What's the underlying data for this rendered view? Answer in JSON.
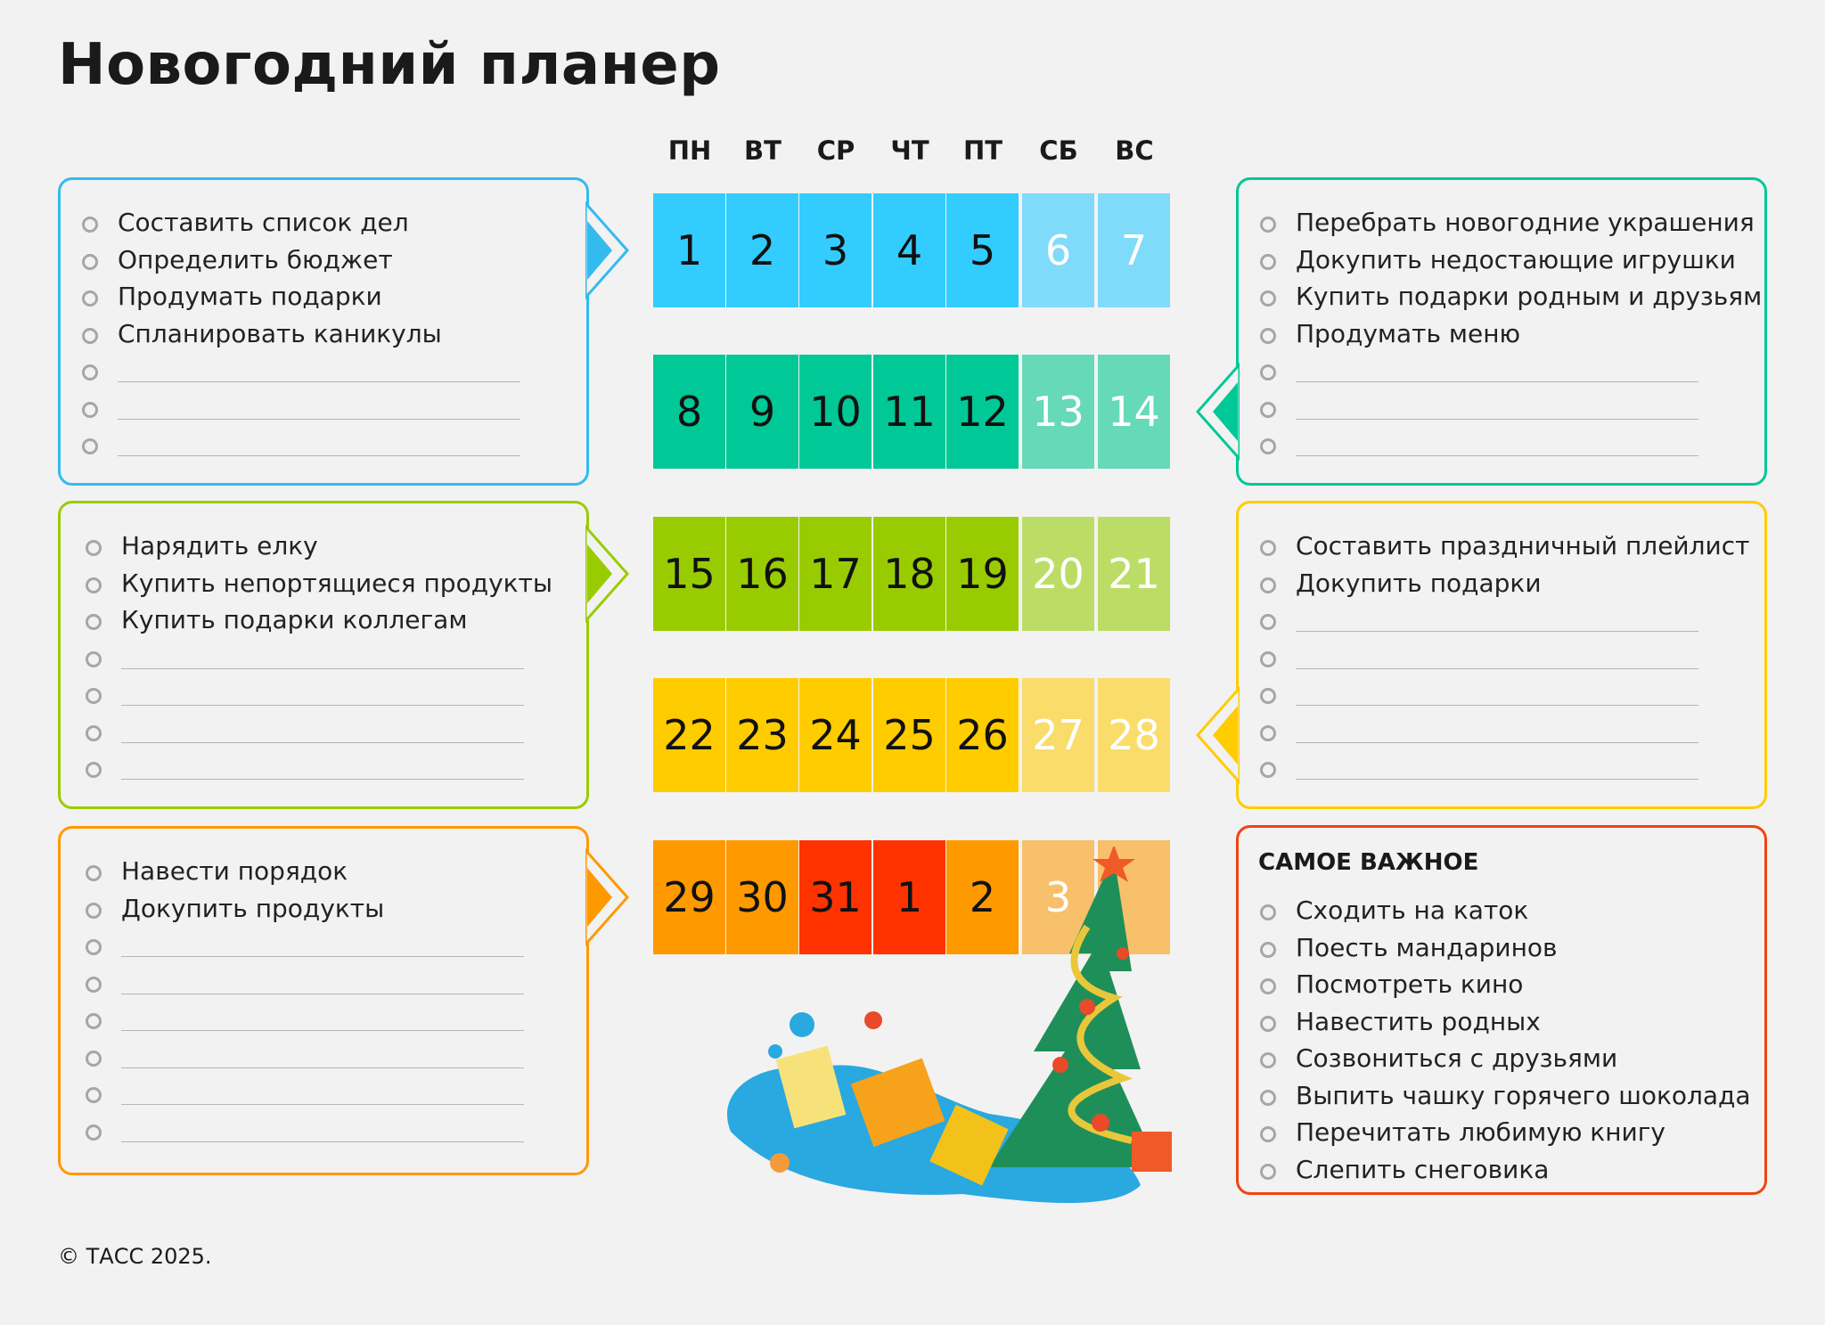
{
  "title": "Новогодний планер",
  "weekdays": [
    "ПН",
    "ВТ",
    "СР",
    "ЧТ",
    "ПТ",
    "СБ",
    "ВС"
  ],
  "calendar": {
    "weeks": [
      {
        "days": [
          "1",
          "2",
          "3",
          "4",
          "5",
          "6",
          "7"
        ],
        "colors": [
          "#33ccff",
          "#33ccff",
          "#33ccff",
          "#33ccff",
          "#33ccff",
          "#80dafa",
          "#80dafa"
        ]
      },
      {
        "days": [
          "8",
          "9",
          "10",
          "11",
          "12",
          "13",
          "14"
        ],
        "colors": [
          "#00c896",
          "#00c896",
          "#00c896",
          "#00c896",
          "#00c896",
          "#66d9b8",
          "#66d9b8"
        ]
      },
      {
        "days": [
          "15",
          "16",
          "17",
          "18",
          "19",
          "20",
          "21"
        ],
        "colors": [
          "#99cc00",
          "#99cc00",
          "#99cc00",
          "#99cc00",
          "#99cc00",
          "#bbdd66",
          "#bbdd66"
        ]
      },
      {
        "days": [
          "22",
          "23",
          "24",
          "25",
          "26",
          "27",
          "28"
        ],
        "colors": [
          "#ffcc00",
          "#ffcc00",
          "#ffcc00",
          "#ffcc00",
          "#ffcc00",
          "#f9dc6a",
          "#f9dc6a"
        ]
      },
      {
        "days": [
          "29",
          "30",
          "31",
          "1",
          "2",
          "3",
          ""
        ],
        "colors": [
          "#ff9900",
          "#ff9900",
          "#ff3300",
          "#ff3300",
          "#ff9900",
          "#f8c06a",
          "#f8c06a"
        ]
      }
    ],
    "weekend_text_color": "#ffffff"
  },
  "boxes": [
    {
      "color": "#33bbee",
      "side": "left",
      "week": 0,
      "items": [
        "Составить список дел",
        "Определить бюджет",
        "Продумать подарки",
        "Спланировать каникулы",
        "",
        "",
        ""
      ]
    },
    {
      "color": "#99cc00",
      "side": "left",
      "week": 2,
      "items": [
        "Нарядить елку",
        "Купить непортящиеся продукты",
        "Купить подарки коллегам",
        "",
        "",
        "",
        ""
      ]
    },
    {
      "color": "#ff9900",
      "side": "left",
      "week": 4,
      "items": [
        "Навести порядок",
        "Докупить продукты",
        "",
        "",
        "",
        "",
        "",
        ""
      ]
    },
    {
      "color": "#00c896",
      "side": "right",
      "week": 1,
      "items": [
        "Перебрать новогодние украшения",
        "Докупить недостающие игрушки",
        "Купить подарки родным и друзьям",
        "Продумать меню",
        "",
        "",
        ""
      ]
    },
    {
      "color": "#ffcc00",
      "side": "right",
      "week": 3,
      "items": [
        "Составить праздничный плейлист",
        "Докупить подарки",
        "",
        "",
        "",
        "",
        ""
      ]
    },
    {
      "color": "#ee4411",
      "side": "right",
      "week": null,
      "title": "САМОЕ ВАЖНОЕ",
      "items": [
        "Сходить на каток",
        "Поесть мандаринов",
        "Посмотреть кино",
        "Навестить родных",
        "Созвониться с друзьями",
        "Выпить чашку горячего шоколада",
        "Перечитать любимую книгу",
        "Слепить снеговика"
      ]
    }
  ],
  "footer": "© ТАСС 2025."
}
